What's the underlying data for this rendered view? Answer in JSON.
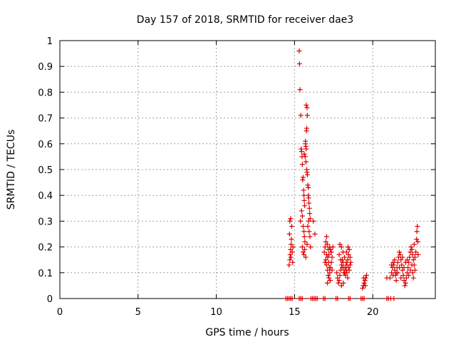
{
  "chart_data": {
    "type": "scatter",
    "title": "Day 157 of 2018, SRMTID for receiver dae3",
    "xlabel": "GPS time / hours",
    "ylabel": "SRMTID / TECUs",
    "xlim": [
      0,
      24
    ],
    "ylim": [
      0,
      1
    ],
    "xticks": [
      0,
      5,
      10,
      15,
      20
    ],
    "xtick_labels": [
      "0",
      "5",
      "10",
      "15",
      "20"
    ],
    "yticks": [
      0,
      0.1,
      0.2,
      0.3,
      0.4,
      0.5,
      0.6,
      0.7,
      0.8,
      0.9,
      1
    ],
    "ytick_labels": [
      "0",
      "0.1",
      "0.2",
      "0.3",
      "0.4",
      "0.5",
      "0.6",
      "0.7",
      "0.8",
      "0.9",
      "1"
    ],
    "grid": true,
    "marker": "+",
    "marker_color": "#dd0000",
    "series": [
      {
        "name": "SRMTID",
        "points": [
          [
            14.45,
            0
          ],
          [
            14.55,
            0
          ],
          [
            14.65,
            0
          ],
          [
            14.75,
            0
          ],
          [
            14.85,
            0
          ],
          [
            15.3,
            0
          ],
          [
            15.4,
            0
          ],
          [
            15.5,
            0
          ],
          [
            16.05,
            0
          ],
          [
            16.15,
            0
          ],
          [
            16.25,
            0
          ],
          [
            16.35,
            0
          ],
          [
            16.45,
            0
          ],
          [
            16.85,
            0
          ],
          [
            16.95,
            0
          ],
          [
            17.65,
            0
          ],
          [
            17.75,
            0
          ],
          [
            18.45,
            0
          ],
          [
            18.55,
            0
          ],
          [
            19.25,
            0
          ],
          [
            19.35,
            0
          ],
          [
            19.45,
            0
          ],
          [
            20.9,
            0
          ],
          [
            21.0,
            0
          ],
          [
            21.15,
            0
          ],
          [
            21.35,
            0
          ],
          [
            14.65,
            0.13
          ],
          [
            14.7,
            0.15
          ],
          [
            14.72,
            0.17
          ],
          [
            14.75,
            0.19
          ],
          [
            14.78,
            0.21
          ],
          [
            14.8,
            0.23
          ],
          [
            14.7,
            0.3
          ],
          [
            14.75,
            0.31
          ],
          [
            14.82,
            0.28
          ],
          [
            14.85,
            0.18
          ],
          [
            14.88,
            0.14
          ],
          [
            14.9,
            0.2
          ],
          [
            14.68,
            0.25
          ],
          [
            14.77,
            0.16
          ],
          [
            15.3,
            0.96
          ],
          [
            15.32,
            0.91
          ],
          [
            15.35,
            0.81
          ],
          [
            15.4,
            0.71
          ],
          [
            15.38,
            0.3
          ],
          [
            15.42,
            0.58
          ],
          [
            15.45,
            0.57
          ],
          [
            15.48,
            0.55
          ],
          [
            15.5,
            0.52
          ],
          [
            15.52,
            0.46
          ],
          [
            15.55,
            0.47
          ],
          [
            15.58,
            0.42
          ],
          [
            15.6,
            0.4
          ],
          [
            15.62,
            0.38
          ],
          [
            15.65,
            0.36
          ],
          [
            15.45,
            0.34
          ],
          [
            15.5,
            0.32
          ],
          [
            15.55,
            0.28
          ],
          [
            15.6,
            0.26
          ],
          [
            15.63,
            0.24
          ],
          [
            15.66,
            0.22
          ],
          [
            15.5,
            0.2
          ],
          [
            15.55,
            0.18
          ],
          [
            15.6,
            0.17
          ],
          [
            15.65,
            0.19
          ],
          [
            15.7,
            0.61
          ],
          [
            15.72,
            0.59
          ],
          [
            15.75,
            0.58
          ],
          [
            15.78,
            0.5
          ],
          [
            15.8,
            0.49
          ],
          [
            15.82,
            0.48
          ],
          [
            15.85,
            0.44
          ],
          [
            15.88,
            0.4
          ],
          [
            15.9,
            0.39
          ],
          [
            15.92,
            0.37
          ],
          [
            15.75,
            0.75
          ],
          [
            15.8,
            0.74
          ],
          [
            15.82,
            0.71
          ],
          [
            15.78,
            0.66
          ],
          [
            15.76,
            0.65
          ],
          [
            15.95,
            0.35
          ],
          [
            15.97,
            0.33
          ],
          [
            16.0,
            0.31
          ],
          [
            15.9,
            0.3
          ],
          [
            15.85,
            0.28
          ],
          [
            15.7,
            0.6
          ],
          [
            15.68,
            0.55
          ],
          [
            15.62,
            0.56
          ],
          [
            15.73,
            0.53
          ],
          [
            15.88,
            0.43
          ],
          [
            15.93,
            0.26
          ],
          [
            15.98,
            0.24
          ],
          [
            16.02,
            0.2
          ],
          [
            15.8,
            0.21
          ],
          [
            15.72,
            0.16
          ],
          [
            16.2,
            0.3
          ],
          [
            16.3,
            0.25
          ],
          [
            16.9,
            0.18
          ],
          [
            16.95,
            0.2
          ],
          [
            17.0,
            0.22
          ],
          [
            17.05,
            0.24
          ],
          [
            17.1,
            0.21
          ],
          [
            17.15,
            0.19
          ],
          [
            17.2,
            0.17
          ],
          [
            17.25,
            0.2
          ],
          [
            17.3,
            0.19
          ],
          [
            17.35,
            0.18
          ],
          [
            17.0,
            0.15
          ],
          [
            17.05,
            0.13
          ],
          [
            17.1,
            0.11
          ],
          [
            17.15,
            0.09
          ],
          [
            17.2,
            0.08
          ],
          [
            17.25,
            0.1
          ],
          [
            17.3,
            0.12
          ],
          [
            17.35,
            0.14
          ],
          [
            17.4,
            0.16
          ],
          [
            17.45,
            0.2
          ],
          [
            17.05,
            0.17
          ],
          [
            17.12,
            0.16
          ],
          [
            17.18,
            0.14
          ],
          [
            17.22,
            0.12
          ],
          [
            17.28,
            0.07
          ],
          [
            17.1,
            0.06
          ],
          [
            16.95,
            0.14
          ],
          [
            17.4,
            0.11
          ],
          [
            17.7,
            0.1
          ],
          [
            17.75,
            0.08
          ],
          [
            17.8,
            0.06
          ],
          [
            17.85,
            0.07
          ],
          [
            17.9,
            0.09
          ],
          [
            17.95,
            0.11
          ],
          [
            18.0,
            0.13
          ],
          [
            18.05,
            0.15
          ],
          [
            18.1,
            0.14
          ],
          [
            18.15,
            0.12
          ],
          [
            18.2,
            0.1
          ],
          [
            18.25,
            0.09
          ],
          [
            18.3,
            0.11
          ],
          [
            18.35,
            0.13
          ],
          [
            18.4,
            0.15
          ],
          [
            18.45,
            0.17
          ],
          [
            18.5,
            0.19
          ],
          [
            18.55,
            0.16
          ],
          [
            18.6,
            0.14
          ],
          [
            18.45,
            0.12
          ],
          [
            17.9,
            0.21
          ],
          [
            18.0,
            0.2
          ],
          [
            18.1,
            0.18
          ],
          [
            18.2,
            0.16
          ],
          [
            18.3,
            0.14
          ],
          [
            17.85,
            0.17
          ],
          [
            17.95,
            0.15
          ],
          [
            18.05,
            0.12
          ],
          [
            18.15,
            0.1
          ],
          [
            18.25,
            0.12
          ],
          [
            18.35,
            0.1
          ],
          [
            18.4,
            0.08
          ],
          [
            18.5,
            0.11
          ],
          [
            18.55,
            0.13
          ],
          [
            18.0,
            0.05
          ],
          [
            18.12,
            0.06
          ],
          [
            18.32,
            0.18
          ],
          [
            18.42,
            0.2
          ],
          [
            19.35,
            0.04
          ],
          [
            19.4,
            0.05
          ],
          [
            19.45,
            0.06
          ],
          [
            19.5,
            0.07
          ],
          [
            19.55,
            0.08
          ],
          [
            19.6,
            0.09
          ],
          [
            19.42,
            0.08
          ],
          [
            19.52,
            0.05
          ],
          [
            20.9,
            0.08
          ],
          [
            21.1,
            0.08
          ],
          [
            21.2,
            0.1
          ],
          [
            21.25,
            0.12
          ],
          [
            21.3,
            0.14
          ],
          [
            21.35,
            0.13
          ],
          [
            21.4,
            0.11
          ],
          [
            21.45,
            0.09
          ],
          [
            21.5,
            0.1
          ],
          [
            21.55,
            0.12
          ],
          [
            21.6,
            0.14
          ],
          [
            21.65,
            0.16
          ],
          [
            21.7,
            0.18
          ],
          [
            21.75,
            0.17
          ],
          [
            21.8,
            0.15
          ],
          [
            21.85,
            0.13
          ],
          [
            21.9,
            0.11
          ],
          [
            21.95,
            0.09
          ],
          [
            22.0,
            0.07
          ],
          [
            22.05,
            0.05
          ],
          [
            22.1,
            0.06
          ],
          [
            22.15,
            0.08
          ],
          [
            22.2,
            0.1
          ],
          [
            22.25,
            0.12
          ],
          [
            22.3,
            0.14
          ],
          [
            22.35,
            0.16
          ],
          [
            22.4,
            0.18
          ],
          [
            22.45,
            0.2
          ],
          [
            22.5,
            0.19
          ],
          [
            22.55,
            0.17
          ],
          [
            22.6,
            0.15
          ],
          [
            22.65,
            0.13
          ],
          [
            22.7,
            0.11
          ],
          [
            22.75,
            0.18
          ],
          [
            22.8,
            0.23
          ],
          [
            22.82,
            0.26
          ],
          [
            22.85,
            0.28
          ],
          [
            22.88,
            0.22
          ],
          [
            21.3,
            0.09
          ],
          [
            21.5,
            0.07
          ],
          [
            21.7,
            0.12
          ],
          [
            21.9,
            0.16
          ],
          [
            22.1,
            0.14
          ],
          [
            22.3,
            0.09
          ],
          [
            22.5,
            0.13
          ],
          [
            22.7,
            0.16
          ],
          [
            21.6,
            0.1
          ],
          [
            21.8,
            0.08
          ],
          [
            22.0,
            0.12
          ],
          [
            22.2,
            0.15
          ],
          [
            22.4,
            0.11
          ],
          [
            22.6,
            0.08
          ],
          [
            21.2,
            0.13
          ],
          [
            21.4,
            0.15
          ],
          [
            22.9,
            0.17
          ],
          [
            22.65,
            0.21
          ],
          [
            22.55,
            0.1
          ]
        ]
      }
    ]
  }
}
